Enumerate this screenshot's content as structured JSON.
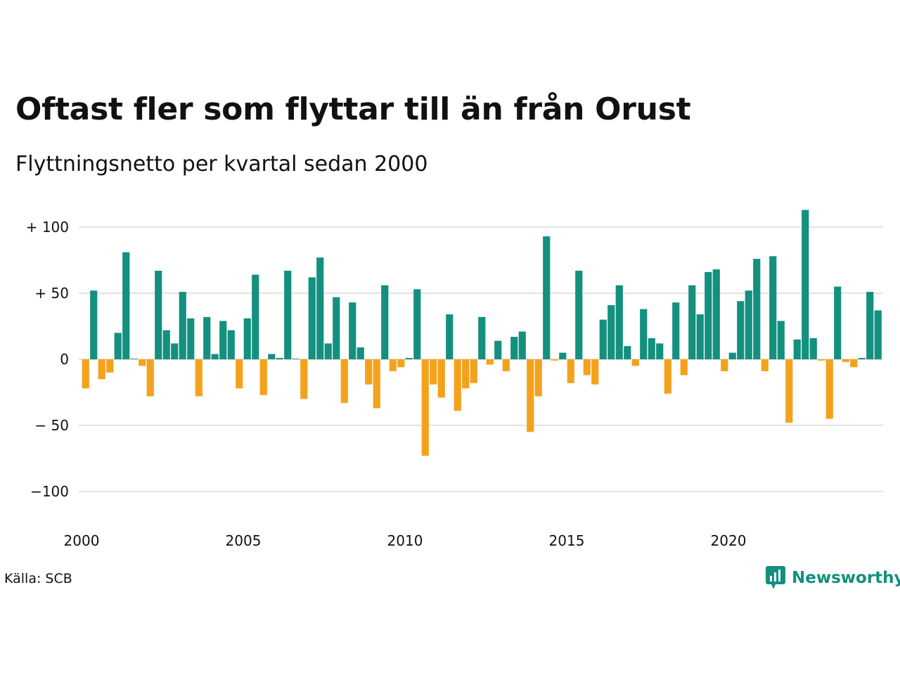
{
  "title": "Oftast fler som flyttar till än från Orust",
  "subtitle": "Flyttningsnetto per kvartal sedan 2000",
  "source": "Källa: SCB",
  "brand": "Newsworthy",
  "colors": {
    "positive": "#14907f",
    "negative": "#f4a21c",
    "grid": "#e2e2e2",
    "brand": "#12907f"
  },
  "chart_data": {
    "type": "bar",
    "title": "Oftast fler som flyttar till än från Orust",
    "subtitle": "Flyttningsnetto per kvartal sedan 2000",
    "xlabel": "",
    "ylabel": "",
    "ylim": [
      -110,
      120
    ],
    "xlim": [
      2000,
      2025
    ],
    "grid": true,
    "yticks": [
      {
        "value": 100,
        "label": "+ 100"
      },
      {
        "value": 50,
        "label": "+  50"
      },
      {
        "value": 0,
        "label": "0"
      },
      {
        "value": -50,
        "label": "− 50"
      },
      {
        "value": -100,
        "label": "−100"
      }
    ],
    "xticks": [
      {
        "value": 2000,
        "label": "2000"
      },
      {
        "value": 2005,
        "label": "2005"
      },
      {
        "value": 2010,
        "label": "2010"
      },
      {
        "value": 2015,
        "label": "2015"
      },
      {
        "value": 2020,
        "label": "2020"
      }
    ],
    "start_year": 2000,
    "values": [
      -22,
      52,
      -15,
      -10,
      20,
      81,
      0,
      -5,
      -28,
      67,
      22,
      12,
      51,
      31,
      -28,
      32,
      4,
      29,
      22,
      -22,
      31,
      64,
      -27,
      4,
      1,
      67,
      0,
      -30,
      62,
      77,
      12,
      47,
      -33,
      43,
      9,
      -19,
      -37,
      56,
      -9,
      -6,
      1,
      53,
      -73,
      -19,
      -29,
      34,
      -39,
      -22,
      -18,
      32,
      -4,
      14,
      -9,
      17,
      21,
      -55,
      -28,
      93,
      -1,
      5,
      -18,
      67,
      -12,
      -19,
      30,
      41,
      56,
      10,
      -5,
      38,
      16,
      12,
      -26,
      43,
      -12,
      56,
      34,
      66,
      68,
      -9,
      5,
      44,
      52,
      76,
      -9,
      78,
      29,
      -48,
      15,
      113,
      16,
      -1,
      -45,
      55,
      -2,
      -6,
      1,
      51,
      37
    ]
  }
}
